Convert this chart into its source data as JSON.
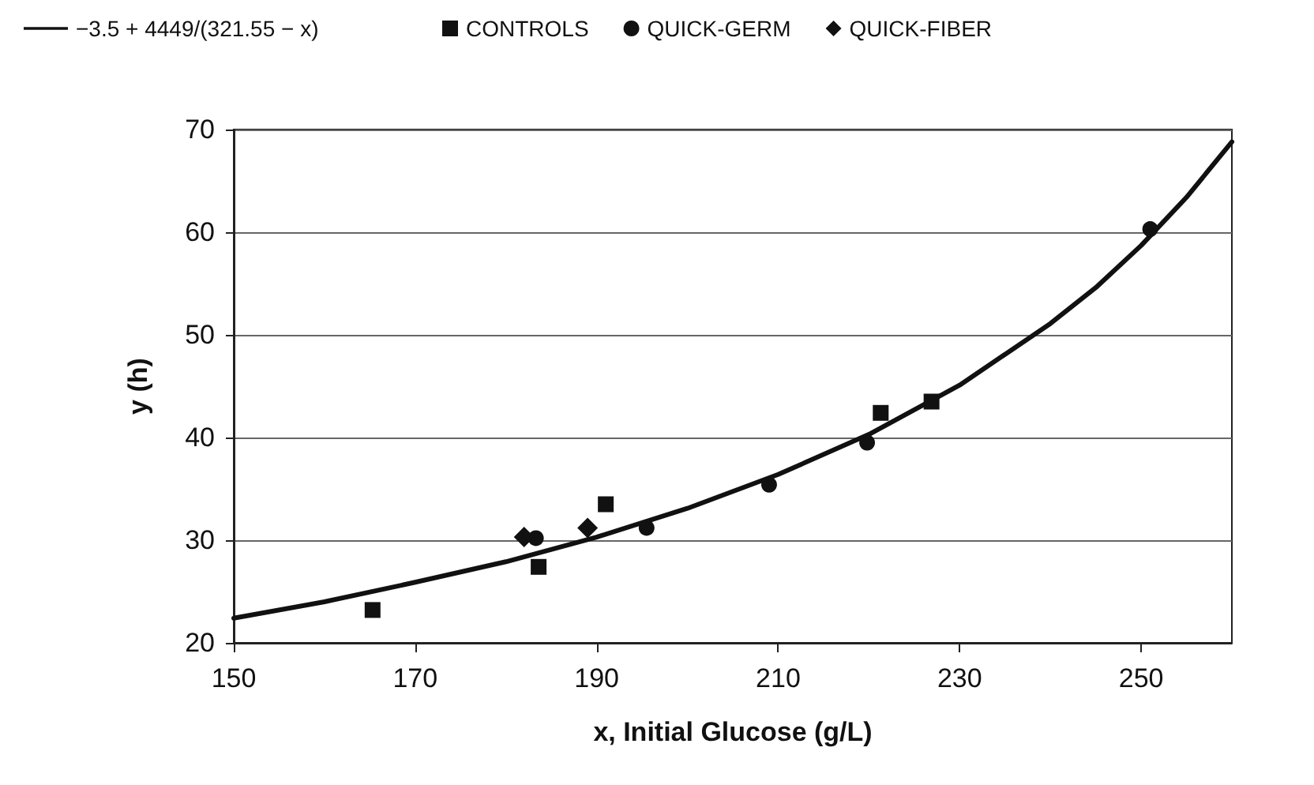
{
  "chart_data": {
    "type": "scatter",
    "xlabel": "x, Initial Glucose (g/L)",
    "ylabel": "y (h)",
    "xlim": [
      150,
      260
    ],
    "xticks": [
      150,
      170,
      190,
      210,
      230,
      250
    ],
    "ylim": [
      20,
      70
    ],
    "yticks": [
      20,
      30,
      40,
      50,
      60,
      70
    ],
    "grid": "y",
    "legend": "top left",
    "series": [
      {
        "name": "−3.5 + 4449/(321.55 − x)",
        "type": "line",
        "color": "#111111",
        "marker": "none",
        "x": [
          150,
          160,
          170,
          180,
          190,
          200,
          210,
          220,
          230,
          240,
          245,
          250,
          255,
          260
        ],
        "values": [
          22.4,
          24.0,
          25.9,
          27.9,
          30.3,
          33.1,
          36.4,
          40.3,
          45.1,
          51.1,
          54.6,
          58.7,
          63.4,
          68.8
        ]
      },
      {
        "name": "CONTROLS",
        "color": "#111111",
        "marker": "square",
        "x": [
          165.3,
          183.6,
          191,
          221.3,
          226.9
        ],
        "values": [
          23.2,
          27.4,
          33.5,
          42.4,
          43.5
        ]
      },
      {
        "name": "QUICK-GERM",
        "color": "#111111",
        "marker": "circle",
        "x": [
          183.3,
          195.5,
          209,
          219.8,
          251
        ],
        "values": [
          30.2,
          31.2,
          35.4,
          39.5,
          60.3
        ]
      },
      {
        "name": "QUICK-FIBER",
        "color": "#111111",
        "marker": "diamond",
        "x": [
          182,
          189
        ],
        "values": [
          30.3,
          31.2
        ]
      }
    ]
  }
}
